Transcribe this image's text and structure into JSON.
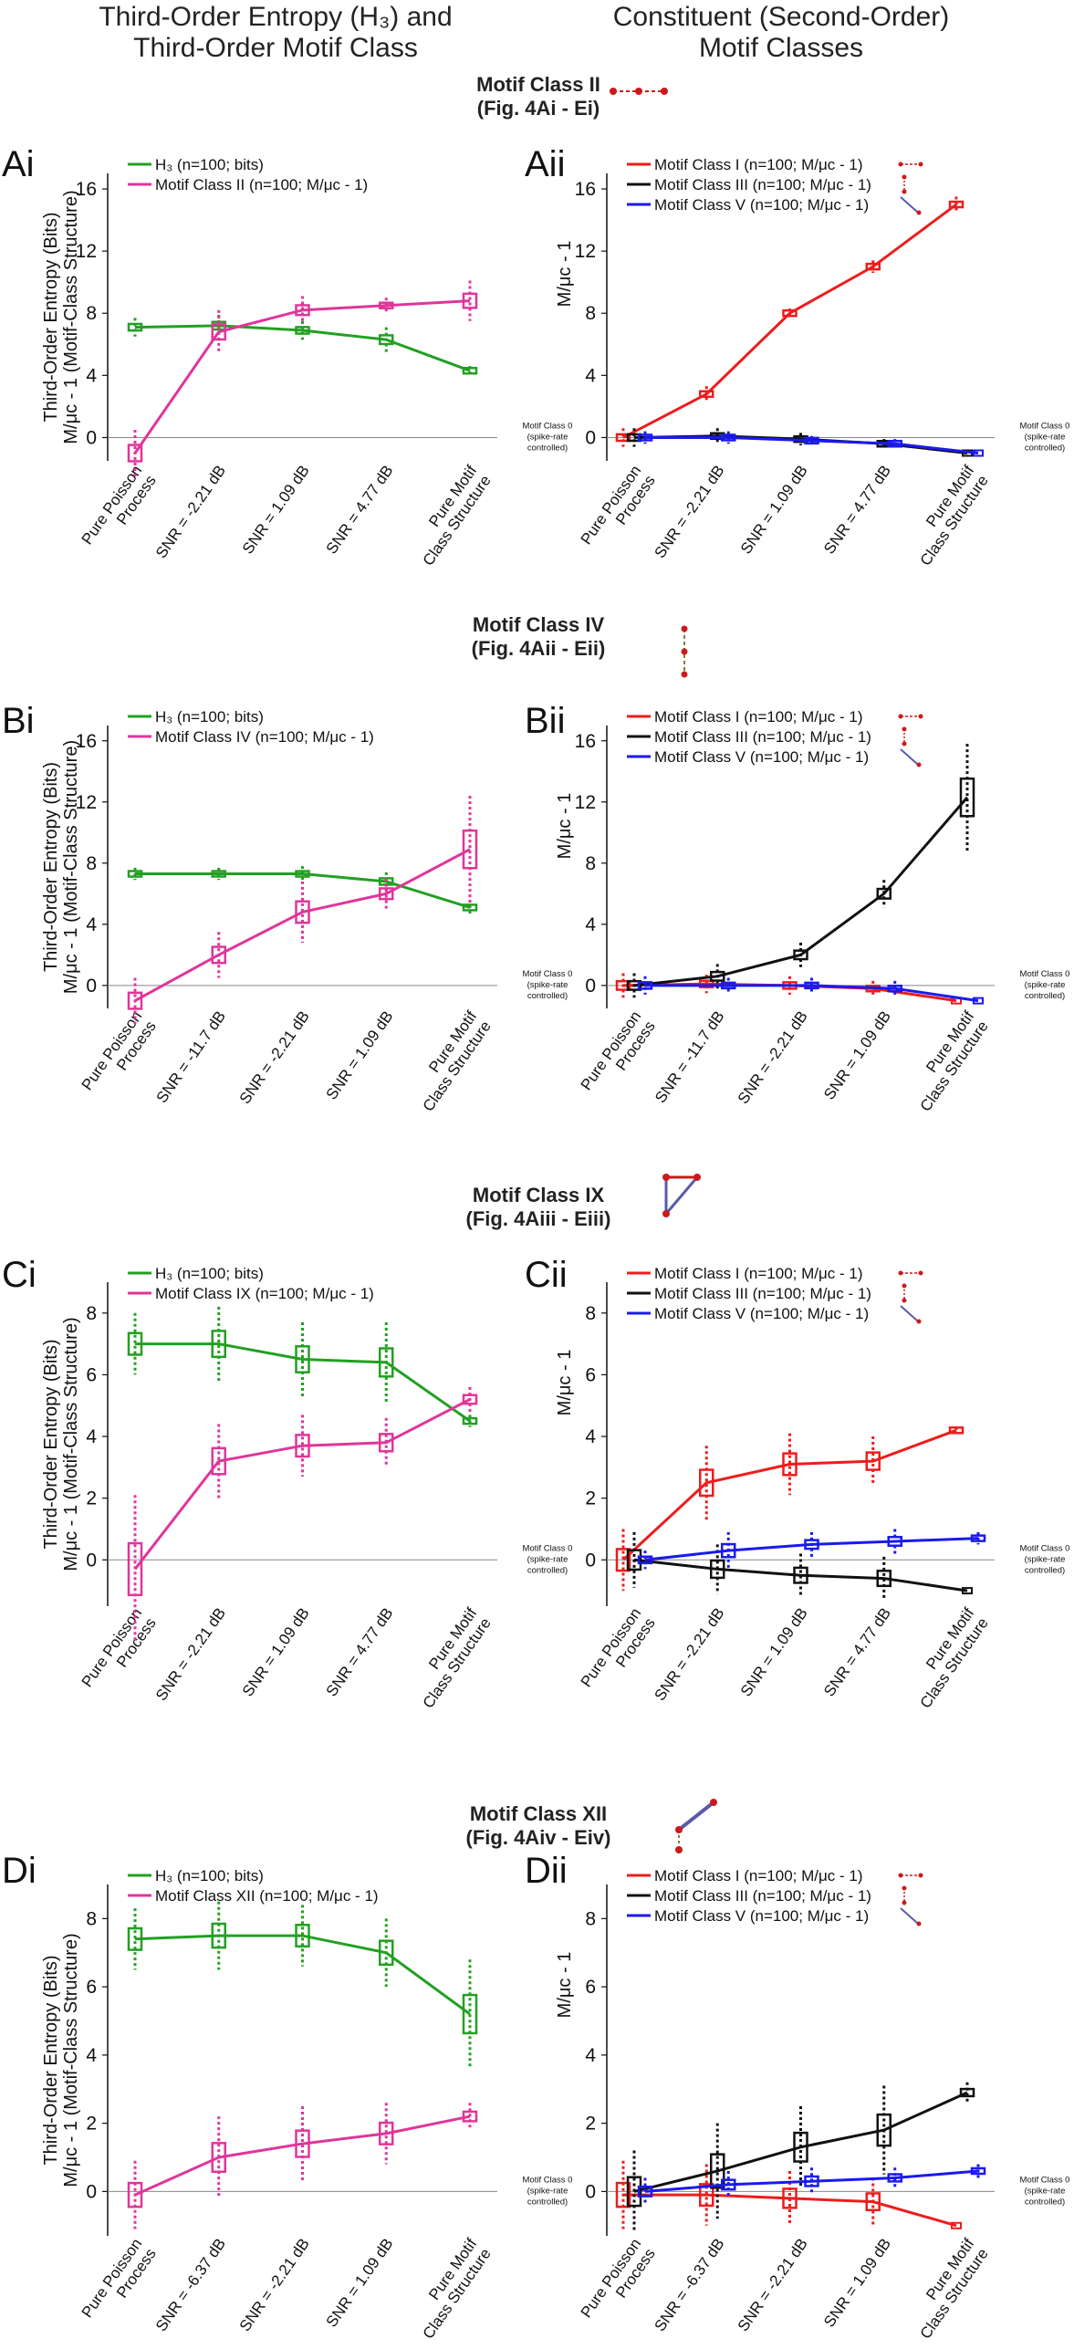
{
  "headers": {
    "left_line1": "Third-Order Entropy (H₃) and",
    "left_line2": "Third-Order Motif Class",
    "right_line1": "Constituent (Second-Order)",
    "right_line2": "Motif Classes"
  },
  "colors": {
    "H3": "#22a022",
    "third": "#e0359a",
    "mc1": "#ee1c1c",
    "mc3": "#111111",
    "mc5": "#1a1aee",
    "zero": "#888888"
  },
  "sections": [
    {
      "title": "Motif Class II",
      "subtitle": "(Fig. 4Ai - Ei)",
      "left": {
        "id": "Ai",
        "ylabel1": "Third-Order Entropy (Bits)",
        "ylabel2": "M/μᴄ - 1  (Motif-Class Structure)",
        "ylim": [
          -1.5,
          17
        ],
        "yticks": [
          "0",
          "4",
          "8",
          "12",
          "16"
        ],
        "categories": [
          "Pure Poisson Process",
          "SNR = -2.21 dB",
          "SNR = 1.09 dB",
          "SNR = 4.77 dB",
          "Pure Motif Class Structure"
        ],
        "legend": [
          "H₃ (n=100; bits)",
          "Motif Class II (n=100; M/μᴄ - 1)"
        ],
        "series": [
          {
            "color_key": "H3",
            "values": [
              7.1,
              7.2,
              6.9,
              6.3,
              4.3
            ],
            "spread": [
              0.6,
              0.7,
              0.6,
              0.8,
              0.3
            ]
          },
          {
            "color_key": "third",
            "values": [
              -1.0,
              6.8,
              8.2,
              8.5,
              8.8
            ],
            "spread": [
              1.5,
              1.4,
              0.9,
              0.5,
              1.3
            ]
          }
        ]
      },
      "right": {
        "id": "Aii",
        "ylabel": "M/μᴄ - 1",
        "ylim": [
          -1.5,
          17
        ],
        "yticks": [
          "0",
          "4",
          "8",
          "12",
          "16"
        ],
        "categories": [
          "Pure Poisson Process",
          "SNR = -2.21 dB",
          "SNR = 1.09 dB",
          "SNR = 4.77 dB",
          "Pure Motif Class Structure"
        ],
        "legend": [
          "Motif Class I (n=100; M/μᴄ - 1)",
          "Motif Class III (n=100; M/μᴄ - 1)",
          "Motif Class V (n=100; M/μᴄ - 1)"
        ],
        "series": [
          {
            "color_key": "mc1",
            "values": [
              0.0,
              2.8,
              8.0,
              11.0,
              15.0
            ],
            "spread": [
              0.6,
              0.5,
              0.3,
              0.4,
              0.5
            ]
          },
          {
            "color_key": "mc3",
            "values": [
              0.0,
              0.1,
              -0.1,
              -0.4,
              -1.0
            ],
            "spread": [
              0.6,
              0.5,
              0.4,
              0.3,
              0.0
            ]
          },
          {
            "color_key": "mc5",
            "values": [
              0.0,
              0.0,
              -0.2,
              -0.4,
              -1.0
            ],
            "spread": [
              0.4,
              0.4,
              0.3,
              0.3,
              0.0
            ]
          }
        ]
      },
      "zero_note": [
        "Motif Class 0",
        "(spike-rate",
        "controlled)"
      ]
    },
    {
      "title": "Motif Class IV",
      "subtitle": "(Fig. 4Aii - Eii)",
      "left": {
        "id": "Bi",
        "ylabel1": "Third-Order Entropy (Bits)",
        "ylabel2": "M/μᴄ - 1  (Motif-Class Structure)",
        "ylim": [
          -1.5,
          17
        ],
        "yticks": [
          "0",
          "4",
          "8",
          "12",
          "16"
        ],
        "categories": [
          "Pure Poisson Process",
          "SNR = -11.7 dB",
          "SNR = -2.21 dB",
          "SNR = 1.09 dB",
          "Pure Motif Class Structure"
        ],
        "legend": [
          "H₃ (n=100; bits)",
          "Motif Class IV (n=100; M/μᴄ - 1)"
        ],
        "series": [
          {
            "color_key": "H3",
            "values": [
              7.3,
              7.3,
              7.3,
              6.8,
              5.1
            ],
            "spread": [
              0.4,
              0.4,
              0.5,
              0.6,
              0.5
            ]
          },
          {
            "color_key": "third",
            "values": [
              -1.0,
              2.0,
              4.8,
              6.0,
              8.9
            ],
            "spread": [
              1.5,
              1.5,
              2.0,
              1.0,
              3.5
            ]
          }
        ]
      },
      "right": {
        "id": "Bii",
        "ylabel": "M/μᴄ - 1",
        "ylim": [
          -1.5,
          17
        ],
        "yticks": [
          "0",
          "4",
          "8",
          "12",
          "16"
        ],
        "categories": [
          "Pure Poisson Process",
          "SNR = -11.7 dB",
          "SNR = -2.21 dB",
          "SNR = 1.09 dB",
          "Pure Motif Class Structure"
        ],
        "legend": [
          "Motif Class I (n=100; M/μᴄ - 1)",
          "Motif Class III (n=100; M/μᴄ - 1)",
          "Motif Class V (n=100; M/μᴄ - 1)"
        ],
        "series": [
          {
            "color_key": "mc1",
            "values": [
              0.0,
              0.1,
              0.0,
              -0.2,
              -1.0
            ],
            "spread": [
              0.8,
              0.6,
              0.6,
              0.5,
              0.0
            ]
          },
          {
            "color_key": "mc3",
            "values": [
              0.0,
              0.6,
              2.0,
              6.0,
              12.3
            ],
            "spread": [
              0.8,
              0.8,
              0.8,
              0.9,
              3.5
            ]
          },
          {
            "color_key": "mc5",
            "values": [
              0.0,
              0.0,
              0.0,
              -0.2,
              -1.0
            ],
            "spread": [
              0.6,
              0.5,
              0.5,
              0.5,
              0.0
            ]
          }
        ]
      },
      "zero_note": [
        "Motif Class 0",
        "(spike-rate",
        "controlled)"
      ]
    },
    {
      "title": "Motif Class IX",
      "subtitle": "(Fig. 4Aiii - Eiii)",
      "left": {
        "id": "Ci",
        "ylabel1": "Third-Order Entropy (Bits)",
        "ylabel2": "M/μᴄ - 1  (Motif-Class Structure)",
        "ylim": [
          -1.5,
          9
        ],
        "yticks": [
          "0",
          "2",
          "4",
          "6",
          "8"
        ],
        "categories": [
          "Pure Poisson Process",
          "SNR = -2.21 dB",
          "SNR = 1.09 dB",
          "SNR = 4.77 dB",
          "Pure Motif Class Structure"
        ],
        "legend": [
          "H₃ (n=100; bits)",
          "Motif Class IX (n=100; M/μᴄ - 1)"
        ],
        "series": [
          {
            "color_key": "H3",
            "values": [
              7.0,
              7.0,
              6.5,
              6.4,
              4.5
            ],
            "spread": [
              1.0,
              1.2,
              1.2,
              1.3,
              0.2
            ]
          },
          {
            "color_key": "third",
            "values": [
              -0.3,
              3.2,
              3.7,
              3.8,
              5.2
            ],
            "spread": [
              2.4,
              1.2,
              1.0,
              0.8,
              0.4
            ]
          }
        ]
      },
      "right": {
        "id": "Cii",
        "ylabel": "M/μᴄ - 1",
        "ylim": [
          -1.5,
          9
        ],
        "yticks": [
          "0",
          "2",
          "4",
          "6",
          "8"
        ],
        "categories": [
          "Pure Poisson Process",
          "SNR = -2.21 dB",
          "SNR = 1.09 dB",
          "SNR = 4.77 dB",
          "Pure Motif Class Structure"
        ],
        "legend": [
          "Motif Class I (n=100; M/μᴄ - 1)",
          "Motif Class III (n=100; M/μᴄ - 1)",
          "Motif Class V (n=100; M/μᴄ - 1)"
        ],
        "series": [
          {
            "color_key": "mc1",
            "values": [
              0.0,
              2.5,
              3.1,
              3.2,
              4.2
            ],
            "spread": [
              1.0,
              1.2,
              1.0,
              0.8,
              0.1
            ]
          },
          {
            "color_key": "mc3",
            "values": [
              0.0,
              -0.3,
              -0.5,
              -0.6,
              -1.0
            ],
            "spread": [
              0.9,
              0.8,
              0.7,
              0.7,
              0.0
            ]
          },
          {
            "color_key": "mc5",
            "values": [
              0.0,
              0.3,
              0.5,
              0.6,
              0.7
            ],
            "spread": [
              0.3,
              0.6,
              0.4,
              0.4,
              0.2
            ]
          }
        ]
      },
      "zero_note": [
        "Motif Class 0",
        "(spike-rate",
        "controlled)"
      ]
    },
    {
      "title": "Motif Class XII",
      "subtitle": "(Fig. 4Aiv - Eiv)",
      "left": {
        "id": "Di",
        "ylabel1": "Third-Order Entropy (Bits)",
        "ylabel2": "M/μᴄ - 1  (Motif-Class Structure)",
        "ylim": [
          -1.3,
          9
        ],
        "yticks": [
          "0",
          "2",
          "4",
          "6",
          "8"
        ],
        "categories": [
          "Pure Poisson Process",
          "SNR = -6.37 dB",
          "SNR = -2.21 dB",
          "SNR = 1.09 dB",
          "Pure Motif Class Structure"
        ],
        "legend": [
          "H₃ (n=100; bits)",
          "Motif Class XII (n=100; M/μᴄ - 1)"
        ],
        "series": [
          {
            "color_key": "H3",
            "values": [
              7.4,
              7.5,
              7.5,
              7.0,
              5.2
            ],
            "spread": [
              0.9,
              1.0,
              0.9,
              1.0,
              1.6
            ]
          },
          {
            "color_key": "third",
            "values": [
              -0.1,
              1.0,
              1.4,
              1.7,
              2.2
            ],
            "spread": [
              1.0,
              1.2,
              1.1,
              0.9,
              0.4
            ]
          }
        ]
      },
      "right": {
        "id": "Dii",
        "ylabel": "M/μᴄ - 1",
        "ylim": [
          -1.3,
          9
        ],
        "yticks": [
          "0",
          "2",
          "4",
          "6",
          "8"
        ],
        "categories": [
          "Pure Poisson Process",
          "SNR = -6.37 dB",
          "SNR = -2.21 dB",
          "SNR = 1.09 dB",
          "Pure Motif Class Structure"
        ],
        "legend": [
          "Motif Class I (n=100; M/μᴄ - 1)",
          "Motif Class III (n=100; M/μᴄ - 1)",
          "Motif Class V (n=100; M/μᴄ - 1)"
        ],
        "series": [
          {
            "color_key": "mc1",
            "values": [
              -0.1,
              -0.1,
              -0.2,
              -0.3,
              -1.0
            ],
            "spread": [
              1.0,
              0.9,
              0.8,
              0.7,
              0.0
            ]
          },
          {
            "color_key": "mc3",
            "values": [
              0.0,
              0.6,
              1.3,
              1.8,
              2.9
            ],
            "spread": [
              1.2,
              1.4,
              1.2,
              1.3,
              0.3
            ]
          },
          {
            "color_key": "mc5",
            "values": [
              0.0,
              0.2,
              0.3,
              0.4,
              0.6
            ],
            "spread": [
              0.4,
              0.4,
              0.4,
              0.3,
              0.2
            ]
          }
        ]
      },
      "zero_note": [
        "Motif Class 0",
        "(spike-rate",
        "controlled)"
      ]
    }
  ],
  "chart_data": [
    {
      "type": "line",
      "panel": "Ai",
      "categories": [
        "Pure Poisson Process",
        "SNR = -2.21 dB",
        "SNR = 1.09 dB",
        "SNR = 4.77 dB",
        "Pure Motif Class Structure"
      ],
      "ylim": [
        -1.5,
        17
      ],
      "series": [
        {
          "name": "H₃ (n=100; bits)",
          "values": [
            7.1,
            7.2,
            6.9,
            6.3,
            4.3
          ]
        },
        {
          "name": "Motif Class II (n=100; M/μᴄ - 1)",
          "values": [
            -1.0,
            6.8,
            8.2,
            8.5,
            8.8
          ]
        }
      ]
    },
    {
      "type": "line",
      "panel": "Aii",
      "categories": [
        "Pure Poisson Process",
        "SNR = -2.21 dB",
        "SNR = 1.09 dB",
        "SNR = 4.77 dB",
        "Pure Motif Class Structure"
      ],
      "ylim": [
        -1.5,
        17
      ],
      "series": [
        {
          "name": "Motif Class I (n=100; M/μᴄ - 1)",
          "values": [
            0.0,
            2.8,
            8.0,
            11.0,
            15.0
          ]
        },
        {
          "name": "Motif Class III (n=100; M/μᴄ - 1)",
          "values": [
            0.0,
            0.1,
            -0.1,
            -0.4,
            -1.0
          ]
        },
        {
          "name": "Motif Class V (n=100; M/μᴄ - 1)",
          "values": [
            0.0,
            0.0,
            -0.2,
            -0.4,
            -1.0
          ]
        }
      ]
    },
    {
      "type": "line",
      "panel": "Bi",
      "categories": [
        "Pure Poisson Process",
        "SNR = -11.7 dB",
        "SNR = -2.21 dB",
        "SNR = 1.09 dB",
        "Pure Motif Class Structure"
      ],
      "ylim": [
        -1.5,
        17
      ],
      "series": [
        {
          "name": "H₃ (n=100; bits)",
          "values": [
            7.3,
            7.3,
            7.3,
            6.8,
            5.1
          ]
        },
        {
          "name": "Motif Class IV (n=100; M/μᴄ - 1)",
          "values": [
            -1.0,
            2.0,
            4.8,
            6.0,
            8.9
          ]
        }
      ]
    },
    {
      "type": "line",
      "panel": "Bii",
      "categories": [
        "Pure Poisson Process",
        "SNR = -11.7 dB",
        "SNR = -2.21 dB",
        "SNR = 1.09 dB",
        "Pure Motif Class Structure"
      ],
      "ylim": [
        -1.5,
        17
      ],
      "series": [
        {
          "name": "Motif Class I (n=100; M/μᴄ - 1)",
          "values": [
            0.0,
            0.1,
            0.0,
            -0.2,
            -1.0
          ]
        },
        {
          "name": "Motif Class III (n=100; M/μᴄ - 1)",
          "values": [
            0.0,
            0.6,
            2.0,
            6.0,
            12.3
          ]
        },
        {
          "name": "Motif Class V (n=100; M/μᴄ - 1)",
          "values": [
            0.0,
            0.0,
            0.0,
            -0.2,
            -1.0
          ]
        }
      ]
    },
    {
      "type": "line",
      "panel": "Ci",
      "categories": [
        "Pure Poisson Process",
        "SNR = -2.21 dB",
        "SNR = 1.09 dB",
        "SNR = 4.77 dB",
        "Pure Motif Class Structure"
      ],
      "ylim": [
        -1.5,
        9
      ],
      "series": [
        {
          "name": "H₃ (n=100; bits)",
          "values": [
            7.0,
            7.0,
            6.5,
            6.4,
            4.5
          ]
        },
        {
          "name": "Motif Class IX (n=100; M/μᴄ - 1)",
          "values": [
            -0.3,
            3.2,
            3.7,
            3.8,
            5.2
          ]
        }
      ]
    },
    {
      "type": "line",
      "panel": "Cii",
      "categories": [
        "Pure Poisson Process",
        "SNR = -2.21 dB",
        "SNR = 1.09 dB",
        "SNR = 4.77 dB",
        "Pure Motif Class Structure"
      ],
      "ylim": [
        -1.5,
        9
      ],
      "series": [
        {
          "name": "Motif Class I (n=100; M/μᴄ - 1)",
          "values": [
            0.0,
            2.5,
            3.1,
            3.2,
            4.2
          ]
        },
        {
          "name": "Motif Class III (n=100; M/μᴄ - 1)",
          "values": [
            0.0,
            -0.3,
            -0.5,
            -0.6,
            -1.0
          ]
        },
        {
          "name": "Motif Class V (n=100; M/μᴄ - 1)",
          "values": [
            0.0,
            0.3,
            0.5,
            0.6,
            0.7
          ]
        }
      ]
    },
    {
      "type": "line",
      "panel": "Di",
      "categories": [
        "Pure Poisson Process",
        "SNR = -6.37 dB",
        "SNR = -2.21 dB",
        "SNR = 1.09 dB",
        "Pure Motif Class Structure"
      ],
      "ylim": [
        -1.3,
        9
      ],
      "series": [
        {
          "name": "H₃ (n=100; bits)",
          "values": [
            7.4,
            7.5,
            7.5,
            7.0,
            5.2
          ]
        },
        {
          "name": "Motif Class XII (n=100; M/μᴄ - 1)",
          "values": [
            -0.1,
            1.0,
            1.4,
            1.7,
            2.2
          ]
        }
      ]
    },
    {
      "type": "line",
      "panel": "Dii",
      "categories": [
        "Pure Poisson Process",
        "SNR = -6.37 dB",
        "SNR = -2.21 dB",
        "SNR = 1.09 dB",
        "Pure Motif Class Structure"
      ],
      "ylim": [
        -1.3,
        9
      ],
      "series": [
        {
          "name": "Motif Class I (n=100; M/μᴄ - 1)",
          "values": [
            -0.1,
            -0.1,
            -0.2,
            -0.3,
            -1.0
          ]
        },
        {
          "name": "Motif Class III (n=100; M/μᴄ - 1)",
          "values": [
            0.0,
            0.6,
            1.3,
            1.8,
            2.9
          ]
        },
        {
          "name": "Motif Class V (n=100; M/μᴄ - 1)",
          "values": [
            0.0,
            0.2,
            0.3,
            0.4,
            0.6
          ]
        }
      ]
    }
  ]
}
